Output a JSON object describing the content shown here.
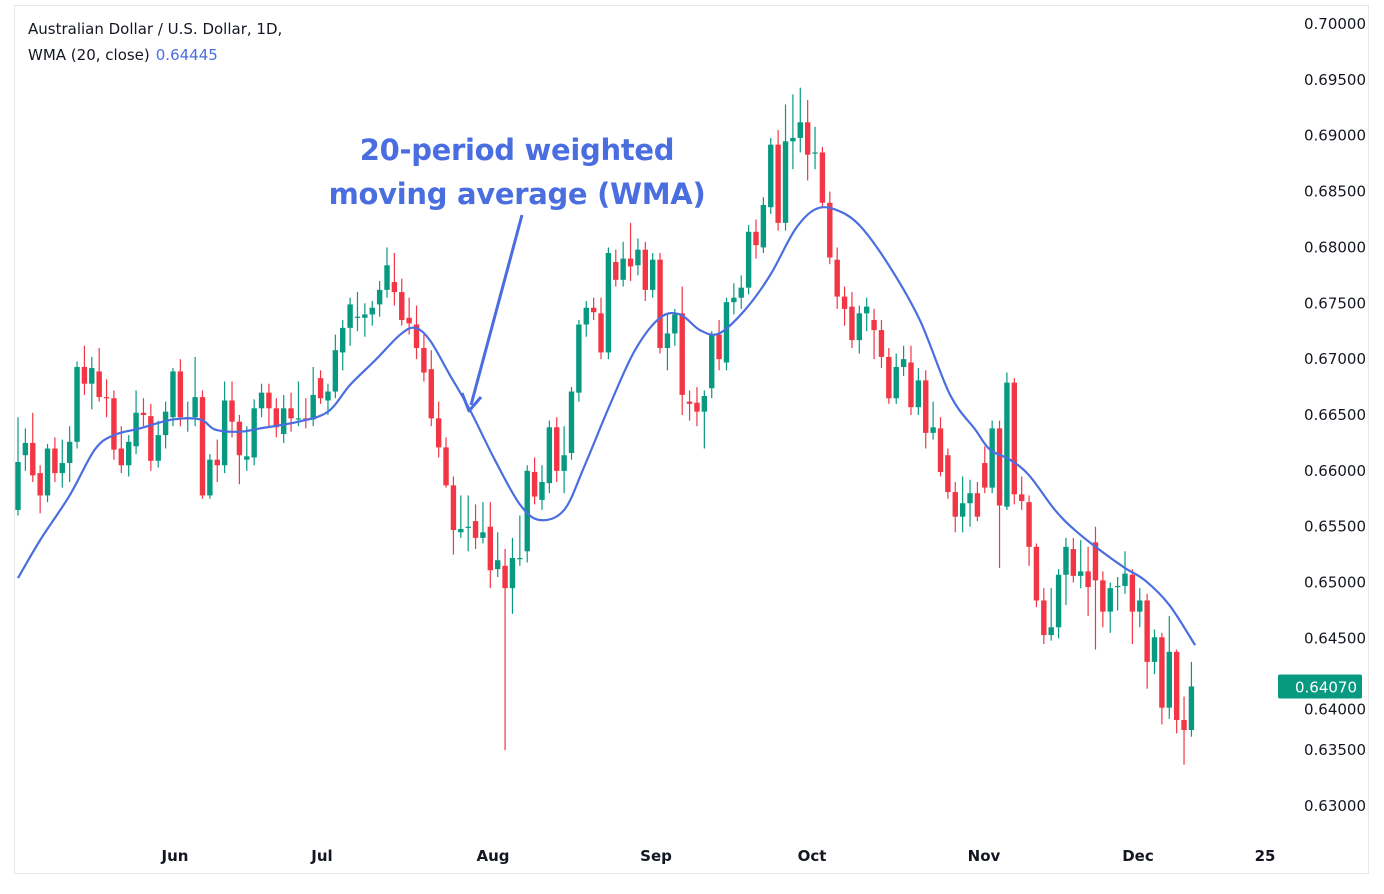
{
  "legend": {
    "symbol_line": "Australian Dollar / U.S. Dollar, 1D,",
    "indicator": "WMA (20, close)",
    "indicator_value": "0.64445"
  },
  "annotation": {
    "line1": "20-period weighted",
    "line2": "moving average (WMA)"
  },
  "colors": {
    "up": "#089981",
    "down": "#f23645",
    "wma": "#4a6ee0",
    "annotation": "#4a6ee0",
    "axis_text": "#131722"
  },
  "chart_data": {
    "type": "candlestick",
    "title": "Australian Dollar / U.S. Dollar, 1D",
    "ylim": [
      0.63,
      0.7
    ],
    "y_ticks": [
      "0.70000",
      "0.69500",
      "0.69000",
      "0.68500",
      "0.68000",
      "0.67500",
      "0.67000",
      "0.66500",
      "0.66000",
      "0.65500",
      "0.65000",
      "0.64500",
      "0.64000",
      "0.63500",
      "0.63000"
    ],
    "x_ticks": [
      "Jun",
      "Jul",
      "Aug",
      "Sep",
      "Oct",
      "Nov",
      "Dec",
      "25"
    ],
    "last_price": "0.64070",
    "grid": false,
    "ohlc": [
      [
        0.6565,
        0.6648,
        0.656,
        0.6608
      ],
      [
        0.6614,
        0.6638,
        0.66,
        0.6625
      ],
      [
        0.6625,
        0.6652,
        0.659,
        0.6596
      ],
      [
        0.6598,
        0.6605,
        0.6562,
        0.6578
      ],
      [
        0.6578,
        0.6624,
        0.6572,
        0.662
      ],
      [
        0.662,
        0.663,
        0.659,
        0.6598
      ],
      [
        0.6598,
        0.6628,
        0.6585,
        0.6607
      ],
      [
        0.6607,
        0.664,
        0.659,
        0.6626
      ],
      [
        0.6626,
        0.6698,
        0.662,
        0.6693
      ],
      [
        0.6693,
        0.6712,
        0.6668,
        0.6678
      ],
      [
        0.6678,
        0.6702,
        0.6655,
        0.6692
      ],
      [
        0.6689,
        0.671,
        0.6662,
        0.6666
      ],
      [
        0.6666,
        0.6682,
        0.6648,
        0.6665
      ],
      [
        0.6665,
        0.6672,
        0.661,
        0.6619
      ],
      [
        0.662,
        0.664,
        0.6598,
        0.6605
      ],
      [
        0.6605,
        0.6632,
        0.6595,
        0.6626
      ],
      [
        0.6622,
        0.6672,
        0.6615,
        0.6652
      ],
      [
        0.6652,
        0.6665,
        0.664,
        0.665
      ],
      [
        0.6649,
        0.666,
        0.66,
        0.6609
      ],
      [
        0.6609,
        0.6645,
        0.6603,
        0.6632
      ],
      [
        0.6632,
        0.6662,
        0.662,
        0.6653
      ],
      [
        0.6648,
        0.6692,
        0.664,
        0.6689
      ],
      [
        0.6689,
        0.67,
        0.664,
        0.6648
      ],
      [
        0.6648,
        0.6662,
        0.6635,
        0.6648
      ],
      [
        0.6648,
        0.6702,
        0.664,
        0.6666
      ],
      [
        0.6666,
        0.6672,
        0.6575,
        0.6578
      ],
      [
        0.6578,
        0.6615,
        0.6575,
        0.661
      ],
      [
        0.661,
        0.6628,
        0.659,
        0.6605
      ],
      [
        0.6605,
        0.668,
        0.6598,
        0.6663
      ],
      [
        0.6663,
        0.668,
        0.663,
        0.6644
      ],
      [
        0.6644,
        0.665,
        0.6588,
        0.6614
      ],
      [
        0.661,
        0.664,
        0.66,
        0.6613
      ],
      [
        0.6612,
        0.6664,
        0.6605,
        0.6656
      ],
      [
        0.6656,
        0.6678,
        0.6648,
        0.667
      ],
      [
        0.667,
        0.6678,
        0.664,
        0.6656
      ],
      [
        0.6656,
        0.6665,
        0.663,
        0.6639
      ],
      [
        0.6633,
        0.6668,
        0.6625,
        0.6656
      ],
      [
        0.6656,
        0.667,
        0.6635,
        0.6647
      ],
      [
        0.6647,
        0.668,
        0.664,
        0.6647
      ],
      [
        0.6647,
        0.6665,
        0.6638,
        0.6645
      ],
      [
        0.6646,
        0.6693,
        0.664,
        0.6668
      ],
      [
        0.6683,
        0.669,
        0.666,
        0.6665
      ],
      [
        0.6663,
        0.6678,
        0.665,
        0.6671
      ],
      [
        0.6671,
        0.6722,
        0.6665,
        0.6708
      ],
      [
        0.6706,
        0.6735,
        0.669,
        0.6728
      ],
      [
        0.6728,
        0.6755,
        0.6712,
        0.6749
      ],
      [
        0.6738,
        0.676,
        0.6725,
        0.6738
      ],
      [
        0.6737,
        0.675,
        0.672,
        0.674
      ],
      [
        0.674,
        0.6752,
        0.673,
        0.6746
      ],
      [
        0.6749,
        0.677,
        0.6738,
        0.6762
      ],
      [
        0.6762,
        0.68,
        0.6755,
        0.6784
      ],
      [
        0.6769,
        0.6795,
        0.6748,
        0.676
      ],
      [
        0.676,
        0.6772,
        0.673,
        0.6735
      ],
      [
        0.6737,
        0.6755,
        0.6722,
        0.6732
      ],
      [
        0.6731,
        0.6748,
        0.67,
        0.671
      ],
      [
        0.671,
        0.6722,
        0.668,
        0.6688
      ],
      [
        0.6691,
        0.6708,
        0.664,
        0.6647
      ],
      [
        0.6647,
        0.6662,
        0.6612,
        0.6621
      ],
      [
        0.6621,
        0.663,
        0.6585,
        0.6587
      ],
      [
        0.6587,
        0.6595,
        0.6525,
        0.6547
      ],
      [
        0.6545,
        0.6578,
        0.654,
        0.6548
      ],
      [
        0.655,
        0.6578,
        0.6528,
        0.655
      ],
      [
        0.6555,
        0.657,
        0.653,
        0.654
      ],
      [
        0.654,
        0.6572,
        0.6535,
        0.6545
      ],
      [
        0.655,
        0.6572,
        0.6495,
        0.6511
      ],
      [
        0.6512,
        0.6545,
        0.6505,
        0.652
      ],
      [
        0.6515,
        0.653,
        0.635,
        0.6495
      ],
      [
        0.6495,
        0.654,
        0.6472,
        0.6522
      ],
      [
        0.6522,
        0.656,
        0.6515,
        0.6522
      ],
      [
        0.6528,
        0.6605,
        0.6518,
        0.66
      ],
      [
        0.6599,
        0.6612,
        0.657,
        0.6577
      ],
      [
        0.6574,
        0.6605,
        0.6565,
        0.659
      ],
      [
        0.6589,
        0.6645,
        0.658,
        0.6639
      ],
      [
        0.6639,
        0.6648,
        0.659,
        0.66
      ],
      [
        0.66,
        0.664,
        0.658,
        0.6614
      ],
      [
        0.6616,
        0.6675,
        0.661,
        0.6671
      ],
      [
        0.667,
        0.6735,
        0.6662,
        0.6731
      ],
      [
        0.6731,
        0.6752,
        0.672,
        0.6746
      ],
      [
        0.6746,
        0.6755,
        0.6735,
        0.6742
      ],
      [
        0.6741,
        0.6755,
        0.67,
        0.6706
      ],
      [
        0.6706,
        0.68,
        0.67,
        0.6795
      ],
      [
        0.6787,
        0.6798,
        0.6765,
        0.6771
      ],
      [
        0.6771,
        0.6805,
        0.6765,
        0.679
      ],
      [
        0.679,
        0.6822,
        0.677,
        0.6783
      ],
      [
        0.6784,
        0.6808,
        0.6775,
        0.6798
      ],
      [
        0.6798,
        0.6805,
        0.6752,
        0.6762
      ],
      [
        0.6762,
        0.6795,
        0.6755,
        0.6789
      ],
      [
        0.6789,
        0.6795,
        0.6705,
        0.671
      ],
      [
        0.671,
        0.674,
        0.669,
        0.6723
      ],
      [
        0.6723,
        0.6745,
        0.6712,
        0.674
      ],
      [
        0.6741,
        0.6765,
        0.665,
        0.6668
      ],
      [
        0.6662,
        0.6672,
        0.6645,
        0.666
      ],
      [
        0.6661,
        0.6675,
        0.664,
        0.6653
      ],
      [
        0.6653,
        0.6672,
        0.662,
        0.6667
      ],
      [
        0.6674,
        0.6725,
        0.6665,
        0.6722
      ],
      [
        0.6722,
        0.6735,
        0.669,
        0.67
      ],
      [
        0.6697,
        0.6755,
        0.669,
        0.6751
      ],
      [
        0.6751,
        0.6768,
        0.674,
        0.6755
      ],
      [
        0.6755,
        0.6775,
        0.6745,
        0.6764
      ],
      [
        0.6764,
        0.682,
        0.6758,
        0.6814
      ],
      [
        0.6814,
        0.6825,
        0.679,
        0.6802
      ],
      [
        0.68,
        0.6845,
        0.6795,
        0.6838
      ],
      [
        0.6836,
        0.6898,
        0.683,
        0.6892
      ],
      [
        0.6892,
        0.6905,
        0.6815,
        0.6822
      ],
      [
        0.6822,
        0.6928,
        0.6815,
        0.6895
      ],
      [
        0.6895,
        0.6937,
        0.687,
        0.6898
      ],
      [
        0.6898,
        0.6943,
        0.6885,
        0.6912
      ],
      [
        0.6912,
        0.6932,
        0.686,
        0.6883
      ],
      [
        0.6885,
        0.6908,
        0.687,
        0.6885
      ],
      [
        0.6885,
        0.689,
        0.6835,
        0.684
      ],
      [
        0.684,
        0.685,
        0.6785,
        0.6791
      ],
      [
        0.6789,
        0.68,
        0.6745,
        0.6756
      ],
      [
        0.6756,
        0.6765,
        0.673,
        0.6745
      ],
      [
        0.6747,
        0.676,
        0.671,
        0.6717
      ],
      [
        0.6717,
        0.6748,
        0.6705,
        0.6741
      ],
      [
        0.6741,
        0.6755,
        0.6725,
        0.6747
      ],
      [
        0.6735,
        0.6745,
        0.67,
        0.6726
      ],
      [
        0.6726,
        0.6735,
        0.6692,
        0.6702
      ],
      [
        0.6702,
        0.671,
        0.666,
        0.6665
      ],
      [
        0.6665,
        0.6705,
        0.666,
        0.6693
      ],
      [
        0.6693,
        0.6712,
        0.6685,
        0.67
      ],
      [
        0.6697,
        0.6712,
        0.665,
        0.6657
      ],
      [
        0.6657,
        0.6692,
        0.665,
        0.6681
      ],
      [
        0.6681,
        0.669,
        0.662,
        0.6634
      ],
      [
        0.6634,
        0.6662,
        0.6628,
        0.6639
      ],
      [
        0.6638,
        0.6648,
        0.6595,
        0.6599
      ],
      [
        0.6614,
        0.662,
        0.6575,
        0.6581
      ],
      [
        0.6581,
        0.659,
        0.6545,
        0.6559
      ],
      [
        0.6559,
        0.6595,
        0.6545,
        0.6571
      ],
      [
        0.6571,
        0.6592,
        0.655,
        0.658
      ],
      [
        0.658,
        0.659,
        0.6555,
        0.6559
      ],
      [
        0.6607,
        0.6622,
        0.658,
        0.6585
      ],
      [
        0.6585,
        0.6645,
        0.658,
        0.6638
      ],
      [
        0.6638,
        0.6645,
        0.6513,
        0.6569
      ],
      [
        0.6568,
        0.6688,
        0.6565,
        0.6679
      ],
      [
        0.6679,
        0.6683,
        0.657,
        0.6579
      ],
      [
        0.6579,
        0.6595,
        0.6565,
        0.6573
      ],
      [
        0.6572,
        0.6578,
        0.6515,
        0.6532
      ],
      [
        0.6532,
        0.6535,
        0.6478,
        0.6484
      ],
      [
        0.6484,
        0.6495,
        0.6445,
        0.6453
      ],
      [
        0.6453,
        0.6495,
        0.6448,
        0.646
      ],
      [
        0.646,
        0.6512,
        0.645,
        0.6507
      ],
      [
        0.6507,
        0.654,
        0.648,
        0.6532
      ],
      [
        0.653,
        0.654,
        0.65,
        0.6506
      ],
      [
        0.6506,
        0.6538,
        0.6495,
        0.651
      ],
      [
        0.651,
        0.6532,
        0.647,
        0.6496
      ],
      [
        0.6536,
        0.655,
        0.644,
        0.6502
      ],
      [
        0.6502,
        0.651,
        0.646,
        0.6474
      ],
      [
        0.6474,
        0.65,
        0.6455,
        0.6495
      ],
      [
        0.6497,
        0.6505,
        0.6475,
        0.6497
      ],
      [
        0.6497,
        0.6528,
        0.649,
        0.6508
      ],
      [
        0.6507,
        0.6512,
        0.6445,
        0.6474
      ],
      [
        0.6474,
        0.6495,
        0.646,
        0.6484
      ],
      [
        0.6484,
        0.649,
        0.6405,
        0.6429
      ],
      [
        0.6429,
        0.6458,
        0.6418,
        0.6451
      ],
      [
        0.6451,
        0.6455,
        0.6373,
        0.6388
      ],
      [
        0.6388,
        0.647,
        0.6378,
        0.6438
      ],
      [
        0.6438,
        0.644,
        0.6365,
        0.6377
      ],
      [
        0.6377,
        0.6398,
        0.6337,
        0.6368
      ],
      [
        0.6368,
        0.6429,
        0.6362,
        0.6407
      ]
    ],
    "wma_series": [
      [
        0,
        0.6504
      ],
      [
        3,
        0.6538
      ],
      [
        7,
        0.6578
      ],
      [
        10.4,
        0.6619
      ],
      [
        13,
        0.6632
      ],
      [
        16.5,
        0.6638
      ],
      [
        21,
        0.6646
      ],
      [
        24.7,
        0.6646
      ],
      [
        26.7,
        0.6637
      ],
      [
        30,
        0.6635
      ],
      [
        32.8,
        0.6638
      ],
      [
        38,
        0.6644
      ],
      [
        42,
        0.6653
      ],
      [
        45,
        0.6677
      ],
      [
        48.4,
        0.6699
      ],
      [
        51.8,
        0.6722
      ],
      [
        53.8,
        0.6728
      ],
      [
        55.8,
        0.6717
      ],
      [
        58.5,
        0.6686
      ],
      [
        61.2,
        0.6655
      ],
      [
        64.6,
        0.661
      ],
      [
        68,
        0.657
      ],
      [
        70.7,
        0.6556
      ],
      [
        74,
        0.6565
      ],
      [
        76.8,
        0.6605
      ],
      [
        80.2,
        0.6659
      ],
      [
        83.6,
        0.6708
      ],
      [
        87,
        0.6737
      ],
      [
        89.7,
        0.674
      ],
      [
        92.4,
        0.6726
      ],
      [
        95,
        0.6723
      ],
      [
        98.5,
        0.6744
      ],
      [
        101.9,
        0.6775
      ],
      [
        105.3,
        0.6816
      ],
      [
        108,
        0.6834
      ],
      [
        110.7,
        0.6834
      ],
      [
        114,
        0.682
      ],
      [
        118,
        0.6784
      ],
      [
        122.2,
        0.6735
      ],
      [
        126.3,
        0.6668
      ],
      [
        129.7,
        0.6637
      ],
      [
        131.7,
        0.6619
      ],
      [
        134.4,
        0.661
      ],
      [
        137,
        0.6596
      ],
      [
        140.5,
        0.6565
      ],
      [
        143.2,
        0.6547
      ],
      [
        146.6,
        0.6529
      ],
      [
        150,
        0.6513
      ],
      [
        152.7,
        0.6502
      ],
      [
        156,
        0.648
      ],
      [
        159.5,
        0.6444
      ]
    ]
  }
}
